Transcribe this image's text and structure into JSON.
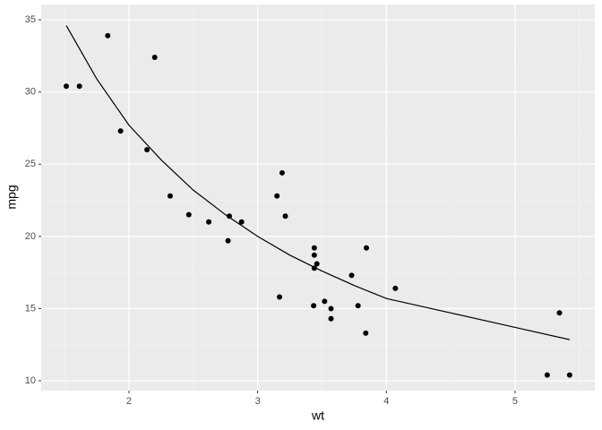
{
  "chart_data": {
    "type": "scatter",
    "x_label": "wt",
    "y_label": "mpg",
    "xlim": [
      1.318,
      5.62
    ],
    "ylim": [
      9.32,
      36.06
    ],
    "xticks": [
      2,
      3,
      4,
      5
    ],
    "yticks": [
      10,
      15,
      20,
      25,
      30,
      35
    ],
    "xminor": [
      1.5,
      2.5,
      3.5,
      4.5,
      5.5
    ],
    "yminor": [
      12.5,
      17.5,
      22.5,
      27.5,
      32.5
    ],
    "grid": true,
    "series": [
      {
        "type": "scatter",
        "color": "#000000",
        "x": [
          2.62,
          2.875,
          2.32,
          3.215,
          3.44,
          3.46,
          3.57,
          3.19,
          3.15,
          3.44,
          3.44,
          4.07,
          3.73,
          3.78,
          5.25,
          5.424,
          5.345,
          2.2,
          1.615,
          1.835,
          2.465,
          3.52,
          3.435,
          3.84,
          3.845,
          1.935,
          2.14,
          1.513,
          3.17,
          2.77,
          3.57,
          2.78
        ],
        "values": [
          21.0,
          21.0,
          22.8,
          21.4,
          18.7,
          18.1,
          14.3,
          24.4,
          22.8,
          19.2,
          17.8,
          16.4,
          17.3,
          15.2,
          10.4,
          10.4,
          14.7,
          32.4,
          30.4,
          33.9,
          21.5,
          15.5,
          15.2,
          13.3,
          19.2,
          27.3,
          26.0,
          30.4,
          15.8,
          19.7,
          15.0,
          21.4
        ]
      },
      {
        "type": "line",
        "color": "#000000",
        "x": [
          1.513,
          1.75,
          2,
          2.25,
          2.5,
          2.75,
          3,
          3.25,
          3.5,
          3.75,
          4,
          4.5,
          5,
          5.424
        ],
        "values": [
          34.6,
          30.9,
          27.7,
          25.3,
          23.2,
          21.5,
          20.0,
          18.7,
          17.6,
          16.6,
          15.7,
          14.7,
          13.7,
          12.85
        ]
      }
    ]
  }
}
